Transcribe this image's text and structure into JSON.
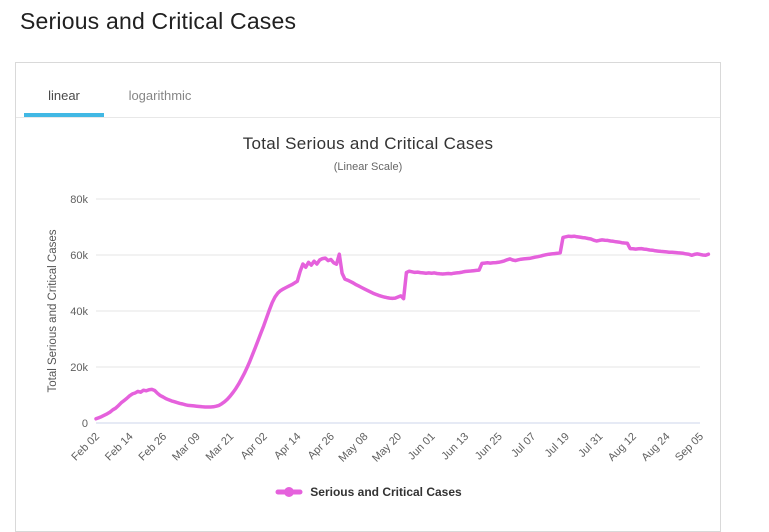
{
  "page": {
    "title": "Serious and Critical Cases"
  },
  "tabs": [
    {
      "label": "linear",
      "active": true
    },
    {
      "label": "logarithmic",
      "active": false
    }
  ],
  "colors": {
    "series_line": "#e561dc",
    "tab_underline": "#41b8e4",
    "gridline": "#e6e6e6",
    "axis_line": "#ccd6eb",
    "tick_text": "#606060",
    "title_text": "#333333"
  },
  "chart_data": {
    "type": "line",
    "title": "Total Serious and Critical Cases",
    "subtitle": "(Linear Scale)",
    "xlabel": "",
    "ylabel": "Total Serious and Critical Cases",
    "ylim": [
      0,
      80000
    ],
    "grid": true,
    "legend_position": "bottom",
    "ytick_values": [
      0,
      20000,
      40000,
      60000,
      80000
    ],
    "ytick_labels": [
      "0",
      "20k",
      "40k",
      "60k",
      "80k"
    ],
    "xtick_labels": [
      "Feb 02",
      "Feb 14",
      "Feb 26",
      "Mar 09",
      "Mar 21",
      "Apr 02",
      "Apr 14",
      "Apr 26",
      "May 08",
      "May 20",
      "Jun 01",
      "Jun 13",
      "Jun 25",
      "Jul 07",
      "Jul 19",
      "Jul 31",
      "Aug 12",
      "Aug 24",
      "Sep 05"
    ],
    "series": [
      {
        "name": "Serious and Critical Cases",
        "color": "#e561dc",
        "points": [
          [
            "Feb 02",
            1500
          ],
          [
            "Feb 03",
            1900
          ],
          [
            "Feb 04",
            2300
          ],
          [
            "Feb 05",
            2800
          ],
          [
            "Feb 06",
            3300
          ],
          [
            "Feb 07",
            3900
          ],
          [
            "Feb 08",
            4700
          ],
          [
            "Feb 09",
            5300
          ],
          [
            "Feb 10",
            6200
          ],
          [
            "Feb 11",
            7200
          ],
          [
            "Feb 12",
            8000
          ],
          [
            "Feb 13",
            8800
          ],
          [
            "Feb 14",
            9700
          ],
          [
            "Feb 15",
            10400
          ],
          [
            "Feb 16",
            10700
          ],
          [
            "Feb 17",
            11300
          ],
          [
            "Feb 18",
            11000
          ],
          [
            "Feb 19",
            11700
          ],
          [
            "Feb 20",
            11500
          ],
          [
            "Feb 21",
            11900
          ],
          [
            "Feb 22",
            12000
          ],
          [
            "Feb 23",
            11600
          ],
          [
            "Feb 24",
            10600
          ],
          [
            "Feb 25",
            9800
          ],
          [
            "Feb 26",
            9300
          ],
          [
            "Feb 27",
            8700
          ],
          [
            "Feb 28",
            8300
          ],
          [
            "Feb 29",
            7900
          ],
          [
            "Mar 01",
            7600
          ],
          [
            "Mar 02",
            7300
          ],
          [
            "Mar 03",
            7000
          ],
          [
            "Mar 04",
            6800
          ],
          [
            "Mar 05",
            6500
          ],
          [
            "Mar 06",
            6300
          ],
          [
            "Mar 07",
            6200
          ],
          [
            "Mar 08",
            6100
          ],
          [
            "Mar 09",
            6000
          ],
          [
            "Mar 10",
            5900
          ],
          [
            "Mar 11",
            5800
          ],
          [
            "Mar 12",
            5700
          ],
          [
            "Mar 13",
            5700
          ],
          [
            "Mar 14",
            5700
          ],
          [
            "Mar 15",
            5800
          ],
          [
            "Mar 16",
            6000
          ],
          [
            "Mar 17",
            6300
          ],
          [
            "Mar 18",
            6900
          ],
          [
            "Mar 19",
            7600
          ],
          [
            "Mar 20",
            8500
          ],
          [
            "Mar 21",
            9600
          ],
          [
            "Mar 22",
            10900
          ],
          [
            "Mar 23",
            12300
          ],
          [
            "Mar 24",
            13900
          ],
          [
            "Mar 25",
            15700
          ],
          [
            "Mar 26",
            17600
          ],
          [
            "Mar 27",
            19700
          ],
          [
            "Mar 28",
            22000
          ],
          [
            "Mar 29",
            24500
          ],
          [
            "Mar 30",
            27000
          ],
          [
            "Mar 31",
            29600
          ],
          [
            "Apr 01",
            32200
          ],
          [
            "Apr 02",
            34800
          ],
          [
            "Apr 03",
            37600
          ],
          [
            "Apr 04",
            40400
          ],
          [
            "Apr 05",
            43000
          ],
          [
            "Apr 06",
            45000
          ],
          [
            "Apr 07",
            46400
          ],
          [
            "Apr 08",
            47300
          ],
          [
            "Apr 09",
            47900
          ],
          [
            "Apr 10",
            48400
          ],
          [
            "Apr 11",
            48900
          ],
          [
            "Apr 12",
            49400
          ],
          [
            "Apr 13",
            50000
          ],
          [
            "Apr 14",
            50600
          ],
          [
            "Apr 15",
            54100
          ],
          [
            "Apr 16",
            56800
          ],
          [
            "Apr 17",
            55600
          ],
          [
            "Apr 18",
            57400
          ],
          [
            "Apr 19",
            56400
          ],
          [
            "Apr 20",
            57800
          ],
          [
            "Apr 21",
            56800
          ],
          [
            "Apr 22",
            58200
          ],
          [
            "Apr 23",
            58700
          ],
          [
            "Apr 24",
            58900
          ],
          [
            "Apr 25",
            58000
          ],
          [
            "Apr 26",
            58400
          ],
          [
            "Apr 27",
            57200
          ],
          [
            "Apr 28",
            56700
          ],
          [
            "Apr 29",
            60300
          ],
          [
            "Apr 30",
            53500
          ],
          [
            "May 01",
            51400
          ],
          [
            "May 02",
            51000
          ],
          [
            "May 03",
            50500
          ],
          [
            "May 04",
            50000
          ],
          [
            "May 05",
            49400
          ],
          [
            "May 06",
            48900
          ],
          [
            "May 07",
            48400
          ],
          [
            "May 08",
            47900
          ],
          [
            "May 09",
            47400
          ],
          [
            "May 10",
            46900
          ],
          [
            "May 11",
            46400
          ],
          [
            "May 12",
            46000
          ],
          [
            "May 13",
            45600
          ],
          [
            "May 14",
            45300
          ],
          [
            "May 15",
            45000
          ],
          [
            "May 16",
            44800
          ],
          [
            "May 17",
            44600
          ],
          [
            "May 18",
            44500
          ],
          [
            "May 19",
            44600
          ],
          [
            "May 20",
            45000
          ],
          [
            "May 21",
            45400
          ],
          [
            "May 22",
            44400
          ],
          [
            "May 23",
            53700
          ],
          [
            "May 24",
            54200
          ],
          [
            "May 25",
            54000
          ],
          [
            "May 26",
            53800
          ],
          [
            "May 27",
            53900
          ],
          [
            "May 28",
            53700
          ],
          [
            "May 29",
            53600
          ],
          [
            "May 30",
            53500
          ],
          [
            "May 31",
            53600
          ],
          [
            "Jun 01",
            53500
          ],
          [
            "Jun 02",
            53600
          ],
          [
            "Jun 03",
            53400
          ],
          [
            "Jun 04",
            53300
          ],
          [
            "Jun 05",
            53200
          ],
          [
            "Jun 06",
            53300
          ],
          [
            "Jun 07",
            53400
          ],
          [
            "Jun 08",
            53300
          ],
          [
            "Jun 09",
            53500
          ],
          [
            "Jun 10",
            53600
          ],
          [
            "Jun 11",
            53700
          ],
          [
            "Jun 12",
            53900
          ],
          [
            "Jun 13",
            54100
          ],
          [
            "Jun 14",
            54200
          ],
          [
            "Jun 15",
            54300
          ],
          [
            "Jun 16",
            54400
          ],
          [
            "Jun 17",
            54500
          ],
          [
            "Jun 18",
            54600
          ],
          [
            "Jun 19",
            57000
          ],
          [
            "Jun 20",
            57100
          ],
          [
            "Jun 21",
            57200
          ],
          [
            "Jun 22",
            57100
          ],
          [
            "Jun 23",
            57200
          ],
          [
            "Jun 24",
            57300
          ],
          [
            "Jun 25",
            57400
          ],
          [
            "Jun 26",
            57600
          ],
          [
            "Jun 27",
            57900
          ],
          [
            "Jun 28",
            58300
          ],
          [
            "Jun 29",
            58600
          ],
          [
            "Jun 30",
            58200
          ],
          [
            "Jul 01",
            58000
          ],
          [
            "Jul 02",
            58300
          ],
          [
            "Jul 03",
            58500
          ],
          [
            "Jul 04",
            58600
          ],
          [
            "Jul 05",
            58700
          ],
          [
            "Jul 06",
            58800
          ],
          [
            "Jul 07",
            59000
          ],
          [
            "Jul 08",
            59200
          ],
          [
            "Jul 09",
            59400
          ],
          [
            "Jul 10",
            59600
          ],
          [
            "Jul 11",
            59900
          ],
          [
            "Jul 12",
            60100
          ],
          [
            "Jul 13",
            60300
          ],
          [
            "Jul 14",
            60400
          ],
          [
            "Jul 15",
            60500
          ],
          [
            "Jul 16",
            60600
          ],
          [
            "Jul 17",
            60800
          ],
          [
            "Jul 18",
            66300
          ],
          [
            "Jul 19",
            66500
          ],
          [
            "Jul 20",
            66700
          ],
          [
            "Jul 21",
            66600
          ],
          [
            "Jul 22",
            66700
          ],
          [
            "Jul 23",
            66500
          ],
          [
            "Jul 24",
            66400
          ],
          [
            "Jul 25",
            66200
          ],
          [
            "Jul 26",
            66100
          ],
          [
            "Jul 27",
            65900
          ],
          [
            "Jul 28",
            65700
          ],
          [
            "Jul 29",
            65300
          ],
          [
            "Jul 30",
            65000
          ],
          [
            "Jul 31",
            65200
          ],
          [
            "Aug 01",
            65400
          ],
          [
            "Aug 02",
            65300
          ],
          [
            "Aug 03",
            65200
          ],
          [
            "Aug 04",
            65000
          ],
          [
            "Aug 05",
            64900
          ],
          [
            "Aug 06",
            64700
          ],
          [
            "Aug 07",
            64600
          ],
          [
            "Aug 08",
            64400
          ],
          [
            "Aug 09",
            64300
          ],
          [
            "Aug 10",
            64200
          ],
          [
            "Aug 11",
            62300
          ],
          [
            "Aug 12",
            62200
          ],
          [
            "Aug 13",
            62100
          ],
          [
            "Aug 14",
            62200
          ],
          [
            "Aug 15",
            62300
          ],
          [
            "Aug 16",
            62100
          ],
          [
            "Aug 17",
            62000
          ],
          [
            "Aug 18",
            61800
          ],
          [
            "Aug 19",
            61700
          ],
          [
            "Aug 20",
            61500
          ],
          [
            "Aug 21",
            61400
          ],
          [
            "Aug 22",
            61300
          ],
          [
            "Aug 23",
            61200
          ],
          [
            "Aug 24",
            61100
          ],
          [
            "Aug 25",
            61000
          ],
          [
            "Aug 26",
            61000
          ],
          [
            "Aug 27",
            60900
          ],
          [
            "Aug 28",
            60800
          ],
          [
            "Aug 29",
            60700
          ],
          [
            "Aug 30",
            60600
          ],
          [
            "Aug 31",
            60400
          ],
          [
            "Sep 01",
            60300
          ],
          [
            "Sep 02",
            59900
          ],
          [
            "Sep 03",
            60200
          ],
          [
            "Sep 04",
            60400
          ],
          [
            "Sep 05",
            60200
          ],
          [
            "Sep 06",
            60000
          ],
          [
            "Sep 07",
            59900
          ],
          [
            "Sep 08",
            60300
          ]
        ]
      }
    ]
  }
}
